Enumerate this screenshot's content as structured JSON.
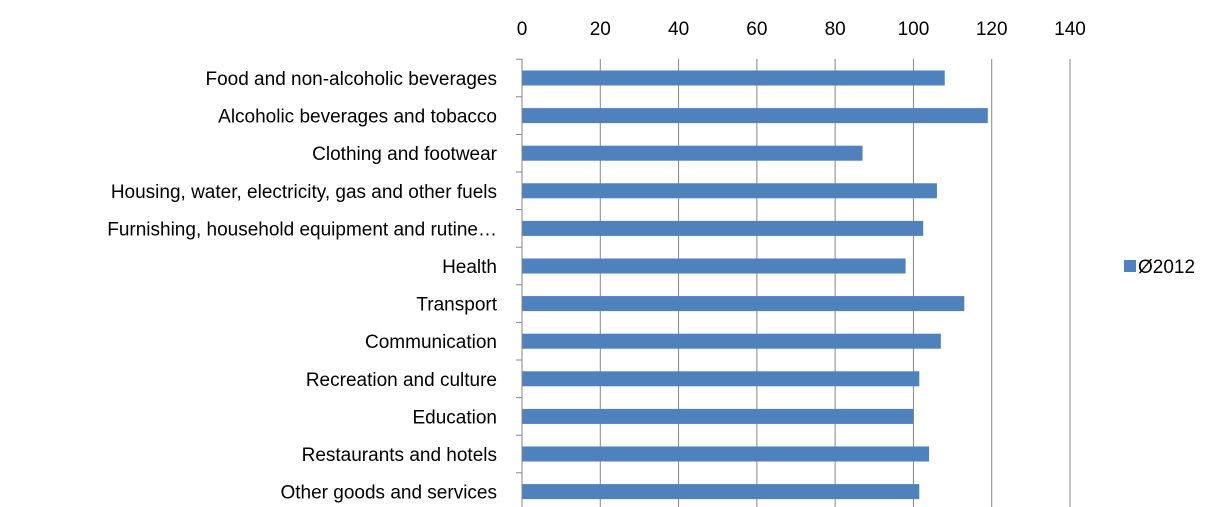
{
  "chart_data": {
    "type": "bar",
    "orientation": "horizontal",
    "categories": [
      "Food and non-alcoholic beverages",
      "Alcoholic beverages and tobacco",
      "Clothing and footwear",
      "Housing, water, electricity, gas and other fuels",
      "Furnishing, household equipment and rutine…",
      "Health",
      "Transport",
      "Communication",
      "Recreation and culture",
      "Education",
      "Restaurants and hotels",
      "Other goods and services"
    ],
    "series": [
      {
        "name": "Ø2012",
        "color": "#4F81BD",
        "values": [
          108,
          119,
          87,
          106,
          102.5,
          98,
          113,
          107,
          101.5,
          100,
          104,
          101.5
        ]
      }
    ],
    "xlim": [
      0,
      140
    ],
    "x_ticks": [
      "0",
      "20",
      "40",
      "60",
      "80",
      "100",
      "120",
      "140"
    ],
    "x_axis_position": "top",
    "category_order": "top-to-bottom",
    "grid": true,
    "legend": "right"
  }
}
